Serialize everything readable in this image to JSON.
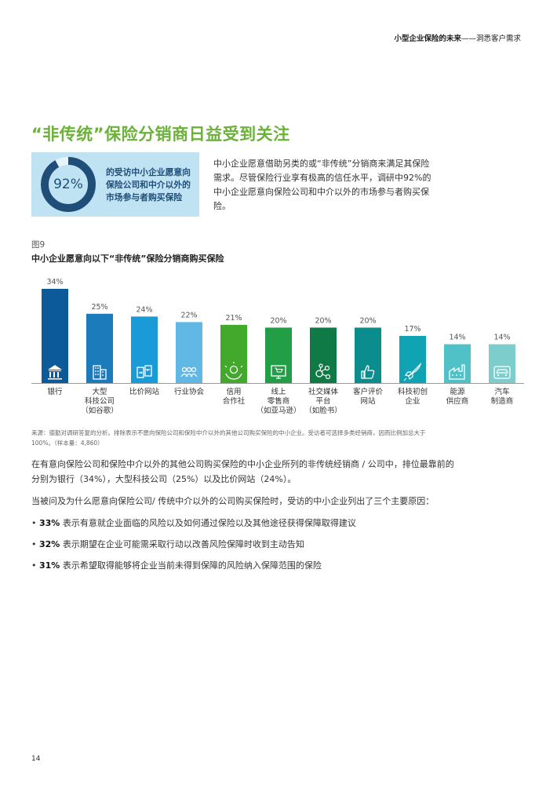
{
  "header": {
    "title_bold": "小型企业保险的未来",
    "title_rest": "——洞悉客户需求"
  },
  "section_title": "“非传统”保险分销商日益受到关注",
  "stat": {
    "percent": "92%",
    "value": 92,
    "text": "的受访中小企业愿意向保险公司和中介以外的市场参与者购买保险"
  },
  "intro": "中小企业愿意借助另类的或“非传统”分销商来满足其保险需求。尽管保险行业享有极高的信任水平，调研中92%的中小企业愿意向保险公司和中介以外的市场参与者购买保险。",
  "figure": {
    "label": "图9",
    "title": "中小企业愿意向以下“非传统”保险分销商购买保险"
  },
  "chart_data": {
    "type": "bar",
    "categories": [
      "银行",
      "大型\n科技公司\n（如谷歌）",
      "比价网站",
      "行业协会",
      "信用\n合作社",
      "线上\n零售商\n（如亚马逊）",
      "社交媒体\n平台\n（如脸书）",
      "客户评价\n网站",
      "科技初创\n企业",
      "能源\n供应商",
      "汽车\n制造商"
    ],
    "values": [
      34,
      25,
      24,
      22,
      21,
      20,
      20,
      20,
      17,
      14,
      14
    ],
    "value_labels": [
      "34%",
      "25%",
      "24%",
      "22%",
      "21%",
      "20%",
      "20%",
      "20%",
      "17%",
      "14%",
      "14%"
    ],
    "colors": [
      "#0c5a99",
      "#1b7bbb",
      "#1a9ad7",
      "#62b8e4",
      "#43a92c",
      "#229e46",
      "#0f7a45",
      "#0b8d8d",
      "#10a3b4",
      "#50c1c6",
      "#7ccdcc"
    ],
    "icons": [
      "bank-icon",
      "office-building-icon",
      "compare-icon",
      "people-icon",
      "hands-coin-icon",
      "shopping-cart-screen-icon",
      "network-icon",
      "thumbs-up-icon",
      "rocket-icon",
      "industry-icon",
      "car-icon"
    ],
    "ylim": [
      0,
      34
    ]
  },
  "source": "来源：德勤对调研答复的分析。排除表示不愿向保险公司和保险中介以外的其他公司购买保险的中小企业。受访者可选择多类经销商，因而比例加总大于100%。（样本量：4,860）",
  "paragraphs": [
    "在有意向保险公司和保险中介以外的其他公司购买保险的中小企业所列的非传统经销商 / 公司中，排位最靠前的分别为银行（34%），大型科技公司（25%）以及比价网站（24%）。",
    "当被问及为什么愿意向保险公司/ 传统中介以外的公司购买保险时，受访的中小企业列出了三个主要原因："
  ],
  "bullets": [
    {
      "pct": "33%",
      "text": " 表示有意就企业面临的风险以及如何通过保险以及其他途径获得保障取得建议"
    },
    {
      "pct": "32%",
      "text": " 表示期望在企业可能需采取行动以改善风险保障时收到主动告知"
    },
    {
      "pct": "31%",
      "text": " 表示希望取得能够将企业当前未得到保障的风险纳入保障范围的保险"
    }
  ],
  "page_number": "14"
}
